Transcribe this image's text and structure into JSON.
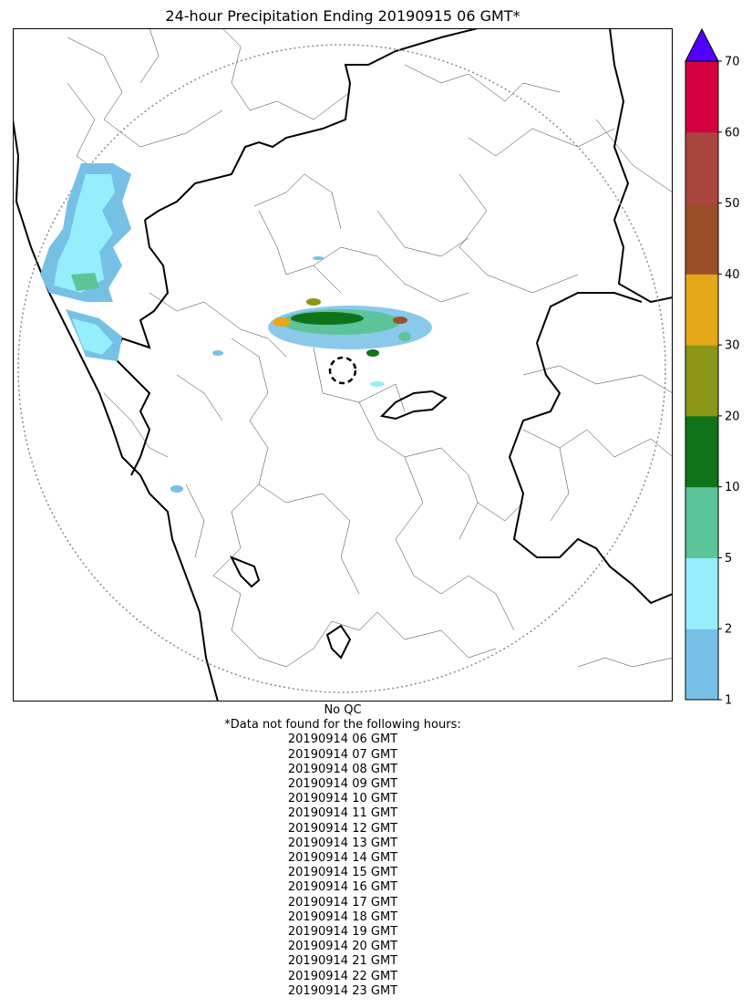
{
  "title": "24-hour Precipitation Ending 20190915 06 GMT*",
  "colorbar": {
    "ticks": [
      "1",
      "2",
      "5",
      "10",
      "20",
      "30",
      "40",
      "50",
      "60",
      "70"
    ],
    "colors": [
      "#76c0e6",
      "#96eefc",
      "#5dc49a",
      "#0e7319",
      "#8b9516",
      "#e6a719",
      "#9c4e2a",
      "#a9473f",
      "#d5003f"
    ],
    "extend_color": "#5100fe"
  },
  "map": {
    "range_ring_color": "#888888",
    "boundary_color": "#000000"
  },
  "notes": {
    "qc": "No QC",
    "missing_header": "*Data not found for the following hours:",
    "missing_hours": [
      "20190914 06 GMT",
      "20190914 07 GMT",
      "20190914 08 GMT",
      "20190914 09 GMT",
      "20190914 10 GMT",
      "20190914 11 GMT",
      "20190914 12 GMT",
      "20190914 13 GMT",
      "20190914 14 GMT",
      "20190914 15 GMT",
      "20190914 16 GMT",
      "20190914 17 GMT",
      "20190914 18 GMT",
      "20190914 19 GMT",
      "20190914 20 GMT",
      "20190914 21 GMT",
      "20190914 22 GMT",
      "20190914 23 GMT"
    ]
  }
}
